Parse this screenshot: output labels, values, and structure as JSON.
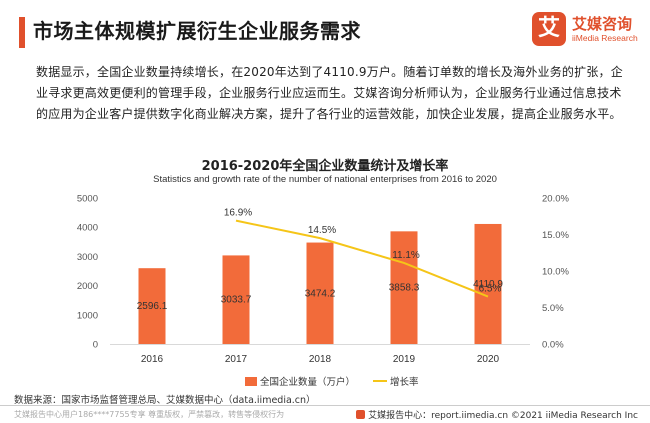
{
  "header": {
    "title": "市场主体规模扩展衍生企业服务需求",
    "logo_mark": "艾",
    "logo_cn": "艾媒咨询",
    "logo_en": "iiMedia Research"
  },
  "body_text": "数据显示，全国企业数量持续增长，在2020年达到了4110.9万户。随着订单数的增长及海外业务的扩张，企业寻求更高效更便利的管理手段，企业服务行业应运而生。艾媒咨询分析师认为，企业服务行业通过信息技术的应用为企业客户提供数字化商业解决方案，提升了各行业的运营效能，加快企业发展，提高企业服务水平。",
  "chart_data": {
    "type": "bar",
    "title": "2016-2020年全国企业数量统计及增长率",
    "subtitle": "Statistics and growth rate of the number of national enterprises from 2016 to 2020",
    "categories": [
      "2016",
      "2017",
      "2018",
      "2019",
      "2020"
    ],
    "series": [
      {
        "name": "全国企业数量（万户）",
        "type": "bar",
        "axis": "left",
        "color": "#f26b3a",
        "values": [
          2596.1,
          3033.7,
          3474.2,
          3858.3,
          4110.9
        ],
        "labels": [
          "2596.1",
          "3033.7",
          "3474.2",
          "3858.3",
          "4110.9"
        ]
      },
      {
        "name": "增长率",
        "type": "line",
        "axis": "right",
        "color": "#f5c518",
        "x": [
          "2017",
          "2018",
          "2019",
          "2020"
        ],
        "values": [
          16.9,
          14.5,
          11.1,
          6.5
        ],
        "labels": [
          "16.9%",
          "14.5%",
          "11.1%",
          "6.5%"
        ]
      }
    ],
    "left_axis": {
      "min": 0,
      "max": 5000,
      "ticks": [
        "0",
        "1000",
        "2000",
        "3000",
        "4000",
        "5000"
      ]
    },
    "right_axis": {
      "min": 0,
      "max": 20,
      "ticks": [
        "0.0%",
        "5.0%",
        "10.0%",
        "15.0%",
        "20.0%"
      ]
    },
    "grid": false,
    "legend_position": "bottom"
  },
  "source": "数据来源：国家市场监督管理总局、艾媒数据中心（data.iimedia.cn）",
  "footer": {
    "left": "艾媒报告中心用户186****7755专享 尊重版权，严禁篡改，转售等侵权行为",
    "right": "艾媒报告中心：report.iimedia.cn   ©2021  iiMedia Research  Inc"
  }
}
